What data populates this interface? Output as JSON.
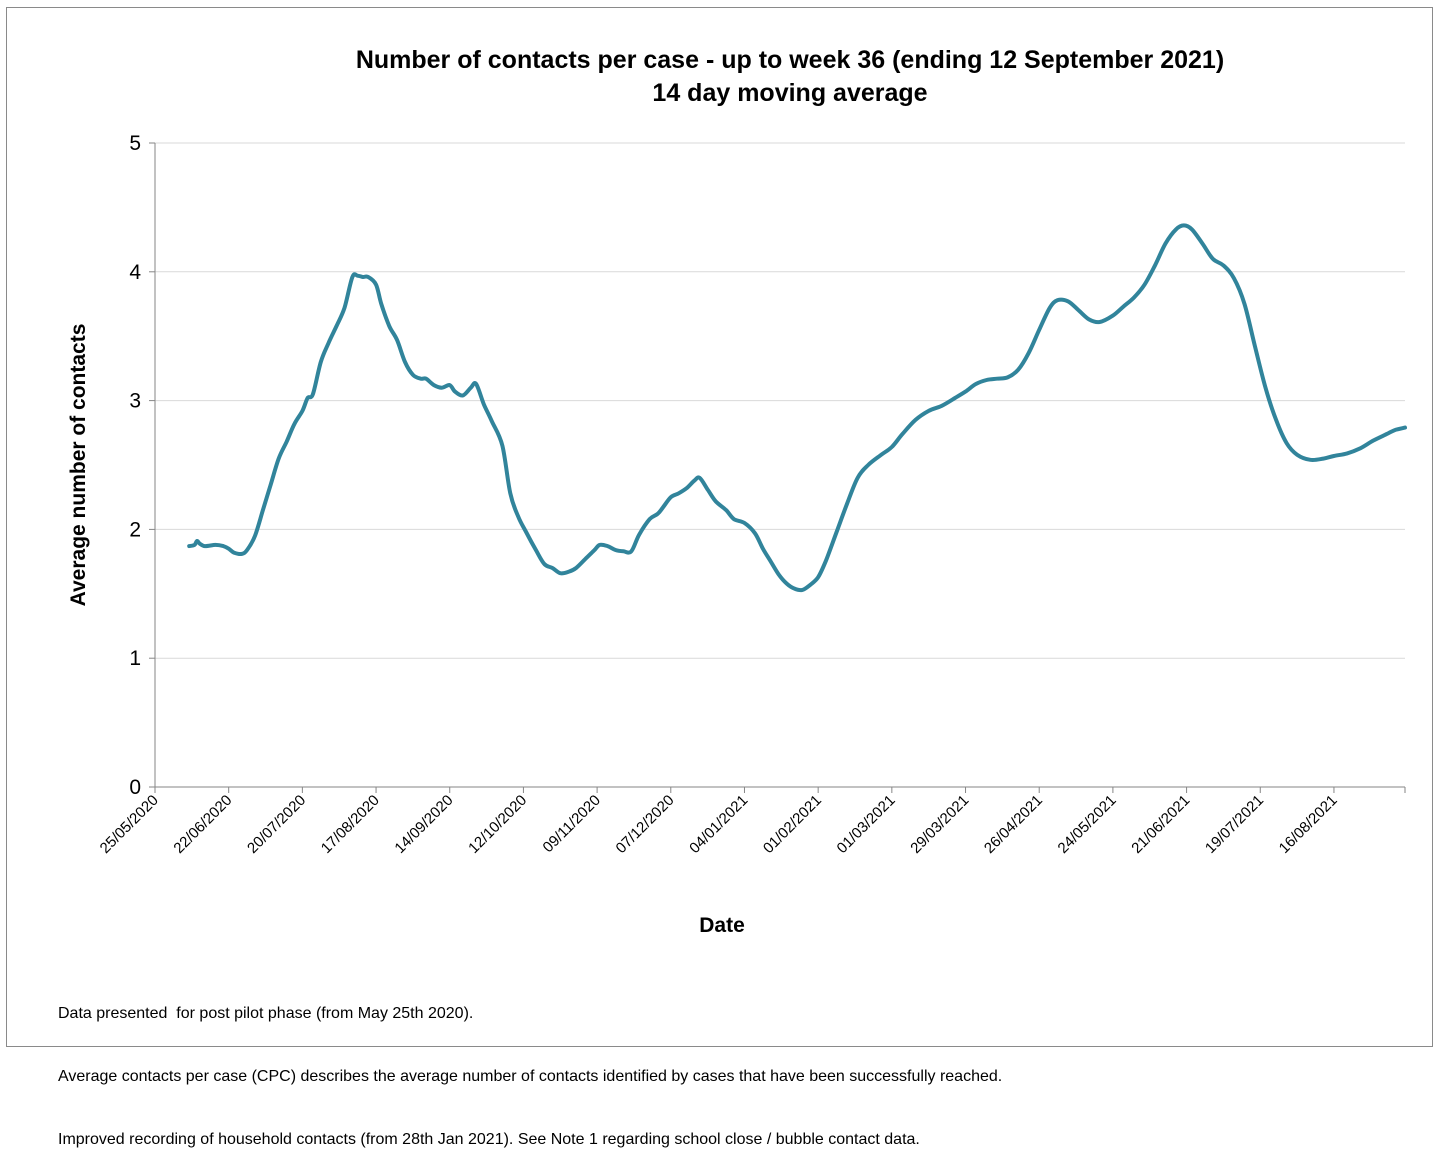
{
  "chart_data": {
    "type": "line",
    "title": "Number of contacts per case - up to week 36 (ending 12 September 2021)",
    "subtitle": "14 day moving average",
    "xlabel": "Date",
    "ylabel": "Average number of contacts",
    "ylim": [
      0,
      5
    ],
    "yticks": [
      "0",
      "1",
      "2",
      "3",
      "4",
      "5"
    ],
    "grid": "horizontal",
    "line_color": "#31849B",
    "x_axis_start": "2020-05-25",
    "x_axis_end": "2021-09-12",
    "xticks": [
      {
        "date": "2020-05-25",
        "label": "25/05/2020"
      },
      {
        "date": "2020-06-22",
        "label": "22/06/2020"
      },
      {
        "date": "2020-07-20",
        "label": "20/07/2020"
      },
      {
        "date": "2020-08-17",
        "label": "17/08/2020"
      },
      {
        "date": "2020-09-14",
        "label": "14/09/2020"
      },
      {
        "date": "2020-10-12",
        "label": "12/10/2020"
      },
      {
        "date": "2020-11-09",
        "label": "09/11/2020"
      },
      {
        "date": "2020-12-07",
        "label": "07/12/2020"
      },
      {
        "date": "2021-01-04",
        "label": "04/01/2021"
      },
      {
        "date": "2021-02-01",
        "label": "01/02/2021"
      },
      {
        "date": "2021-03-01",
        "label": "01/03/2021"
      },
      {
        "date": "2021-03-29",
        "label": "29/03/2021"
      },
      {
        "date": "2021-04-26",
        "label": "26/04/2021"
      },
      {
        "date": "2021-05-24",
        "label": "24/05/2021"
      },
      {
        "date": "2021-06-21",
        "label": "21/06/2021"
      },
      {
        "date": "2021-07-19",
        "label": "19/07/2021"
      },
      {
        "date": "2021-08-16",
        "label": "16/08/2021"
      }
    ],
    "series": [
      {
        "points": [
          {
            "x": "2020-06-07",
            "y": 1.87
          },
          {
            "x": "2020-06-09",
            "y": 1.88
          },
          {
            "x": "2020-06-10",
            "y": 1.91
          },
          {
            "x": "2020-06-11",
            "y": 1.89
          },
          {
            "x": "2020-06-13",
            "y": 1.87
          },
          {
            "x": "2020-06-17",
            "y": 1.88
          },
          {
            "x": "2020-06-20",
            "y": 1.87
          },
          {
            "x": "2020-06-22",
            "y": 1.85
          },
          {
            "x": "2020-06-24",
            "y": 1.82
          },
          {
            "x": "2020-06-27",
            "y": 1.81
          },
          {
            "x": "2020-06-29",
            "y": 1.84
          },
          {
            "x": "2020-07-02",
            "y": 1.95
          },
          {
            "x": "2020-07-05",
            "y": 2.15
          },
          {
            "x": "2020-07-08",
            "y": 2.35
          },
          {
            "x": "2020-07-11",
            "y": 2.55
          },
          {
            "x": "2020-07-14",
            "y": 2.68
          },
          {
            "x": "2020-07-17",
            "y": 2.82
          },
          {
            "x": "2020-07-20",
            "y": 2.92
          },
          {
            "x": "2020-07-22",
            "y": 3.02
          },
          {
            "x": "2020-07-24",
            "y": 3.05
          },
          {
            "x": "2020-07-27",
            "y": 3.3
          },
          {
            "x": "2020-07-30",
            "y": 3.45
          },
          {
            "x": "2020-08-02",
            "y": 3.58
          },
          {
            "x": "2020-08-05",
            "y": 3.72
          },
          {
            "x": "2020-08-08",
            "y": 3.96
          },
          {
            "x": "2020-08-10",
            "y": 3.97
          },
          {
            "x": "2020-08-12",
            "y": 3.96
          },
          {
            "x": "2020-08-14",
            "y": 3.96
          },
          {
            "x": "2020-08-17",
            "y": 3.9
          },
          {
            "x": "2020-08-19",
            "y": 3.75
          },
          {
            "x": "2020-08-22",
            "y": 3.58
          },
          {
            "x": "2020-08-25",
            "y": 3.47
          },
          {
            "x": "2020-08-28",
            "y": 3.3
          },
          {
            "x": "2020-08-31",
            "y": 3.2
          },
          {
            "x": "2020-09-03",
            "y": 3.17
          },
          {
            "x": "2020-09-05",
            "y": 3.17
          },
          {
            "x": "2020-09-08",
            "y": 3.12
          },
          {
            "x": "2020-09-11",
            "y": 3.1
          },
          {
            "x": "2020-09-14",
            "y": 3.12
          },
          {
            "x": "2020-09-16",
            "y": 3.07
          },
          {
            "x": "2020-09-19",
            "y": 3.04
          },
          {
            "x": "2020-09-22",
            "y": 3.1
          },
          {
            "x": "2020-09-24",
            "y": 3.13
          },
          {
            "x": "2020-09-27",
            "y": 2.97
          },
          {
            "x": "2020-09-30",
            "y": 2.84
          },
          {
            "x": "2020-10-04",
            "y": 2.65
          },
          {
            "x": "2020-10-07",
            "y": 2.28
          },
          {
            "x": "2020-10-10",
            "y": 2.1
          },
          {
            "x": "2020-10-13",
            "y": 1.98
          },
          {
            "x": "2020-10-17",
            "y": 1.83
          },
          {
            "x": "2020-10-20",
            "y": 1.73
          },
          {
            "x": "2020-10-23",
            "y": 1.7
          },
          {
            "x": "2020-10-26",
            "y": 1.66
          },
          {
            "x": "2020-10-29",
            "y": 1.67
          },
          {
            "x": "2020-11-01",
            "y": 1.7
          },
          {
            "x": "2020-11-05",
            "y": 1.78
          },
          {
            "x": "2020-11-08",
            "y": 1.84
          },
          {
            "x": "2020-11-10",
            "y": 1.88
          },
          {
            "x": "2020-11-13",
            "y": 1.87
          },
          {
            "x": "2020-11-16",
            "y": 1.84
          },
          {
            "x": "2020-11-19",
            "y": 1.83
          },
          {
            "x": "2020-11-22",
            "y": 1.83
          },
          {
            "x": "2020-11-25",
            "y": 1.96
          },
          {
            "x": "2020-11-29",
            "y": 2.08
          },
          {
            "x": "2020-12-02",
            "y": 2.12
          },
          {
            "x": "2020-12-04",
            "y": 2.17
          },
          {
            "x": "2020-12-07",
            "y": 2.25
          },
          {
            "x": "2020-12-10",
            "y": 2.28
          },
          {
            "x": "2020-12-13",
            "y": 2.32
          },
          {
            "x": "2020-12-16",
            "y": 2.38
          },
          {
            "x": "2020-12-18",
            "y": 2.4
          },
          {
            "x": "2020-12-21",
            "y": 2.31
          },
          {
            "x": "2020-12-24",
            "y": 2.22
          },
          {
            "x": "2020-12-28",
            "y": 2.15
          },
          {
            "x": "2020-12-31",
            "y": 2.08
          },
          {
            "x": "2021-01-04",
            "y": 2.05
          },
          {
            "x": "2021-01-08",
            "y": 1.97
          },
          {
            "x": "2021-01-11",
            "y": 1.85
          },
          {
            "x": "2021-01-14",
            "y": 1.75
          },
          {
            "x": "2021-01-17",
            "y": 1.65
          },
          {
            "x": "2021-01-20",
            "y": 1.58
          },
          {
            "x": "2021-01-23",
            "y": 1.54
          },
          {
            "x": "2021-01-26",
            "y": 1.53
          },
          {
            "x": "2021-01-29",
            "y": 1.57
          },
          {
            "x": "2021-02-01",
            "y": 1.63
          },
          {
            "x": "2021-02-04",
            "y": 1.76
          },
          {
            "x": "2021-02-08",
            "y": 1.98
          },
          {
            "x": "2021-02-12",
            "y": 2.2
          },
          {
            "x": "2021-02-16",
            "y": 2.4
          },
          {
            "x": "2021-02-20",
            "y": 2.5
          },
          {
            "x": "2021-02-25",
            "y": 2.58
          },
          {
            "x": "2021-03-01",
            "y": 2.64
          },
          {
            "x": "2021-03-05",
            "y": 2.74
          },
          {
            "x": "2021-03-10",
            "y": 2.85
          },
          {
            "x": "2021-03-15",
            "y": 2.92
          },
          {
            "x": "2021-03-20",
            "y": 2.96
          },
          {
            "x": "2021-03-25",
            "y": 3.02
          },
          {
            "x": "2021-03-29",
            "y": 3.07
          },
          {
            "x": "2021-04-02",
            "y": 3.13
          },
          {
            "x": "2021-04-06",
            "y": 3.16
          },
          {
            "x": "2021-04-10",
            "y": 3.17
          },
          {
            "x": "2021-04-14",
            "y": 3.18
          },
          {
            "x": "2021-04-18",
            "y": 3.24
          },
          {
            "x": "2021-04-22",
            "y": 3.37
          },
          {
            "x": "2021-04-26",
            "y": 3.55
          },
          {
            "x": "2021-04-30",
            "y": 3.72
          },
          {
            "x": "2021-05-03",
            "y": 3.78
          },
          {
            "x": "2021-05-07",
            "y": 3.77
          },
          {
            "x": "2021-05-11",
            "y": 3.7
          },
          {
            "x": "2021-05-15",
            "y": 3.63
          },
          {
            "x": "2021-05-19",
            "y": 3.61
          },
          {
            "x": "2021-05-24",
            "y": 3.66
          },
          {
            "x": "2021-05-28",
            "y": 3.73
          },
          {
            "x": "2021-06-01",
            "y": 3.8
          },
          {
            "x": "2021-06-05",
            "y": 3.9
          },
          {
            "x": "2021-06-09",
            "y": 4.05
          },
          {
            "x": "2021-06-13",
            "y": 4.22
          },
          {
            "x": "2021-06-17",
            "y": 4.33
          },
          {
            "x": "2021-06-20",
            "y": 4.36
          },
          {
            "x": "2021-06-23",
            "y": 4.33
          },
          {
            "x": "2021-06-27",
            "y": 4.22
          },
          {
            "x": "2021-07-01",
            "y": 4.1
          },
          {
            "x": "2021-07-05",
            "y": 4.05
          },
          {
            "x": "2021-07-09",
            "y": 3.95
          },
          {
            "x": "2021-07-13",
            "y": 3.75
          },
          {
            "x": "2021-07-17",
            "y": 3.42
          },
          {
            "x": "2021-07-21",
            "y": 3.1
          },
          {
            "x": "2021-07-25",
            "y": 2.85
          },
          {
            "x": "2021-07-29",
            "y": 2.67
          },
          {
            "x": "2021-08-02",
            "y": 2.58
          },
          {
            "x": "2021-08-07",
            "y": 2.54
          },
          {
            "x": "2021-08-12",
            "y": 2.55
          },
          {
            "x": "2021-08-16",
            "y": 2.57
          },
          {
            "x": "2021-08-21",
            "y": 2.59
          },
          {
            "x": "2021-08-26",
            "y": 2.63
          },
          {
            "x": "2021-08-31",
            "y": 2.69
          },
          {
            "x": "2021-09-05",
            "y": 2.74
          },
          {
            "x": "2021-09-08",
            "y": 2.77
          },
          {
            "x": "2021-09-12",
            "y": 2.79
          }
        ]
      }
    ]
  },
  "notes": [
    "Data presented  for post pilot phase (from May 25th 2020).",
    "Average contacts per case (CPC) describes the average number of contacts identified by cases that have been successfully reached.",
    "Improved recording of household contacts (from 28th Jan 2021). See Note 1 regarding school close / bubble contact data."
  ]
}
